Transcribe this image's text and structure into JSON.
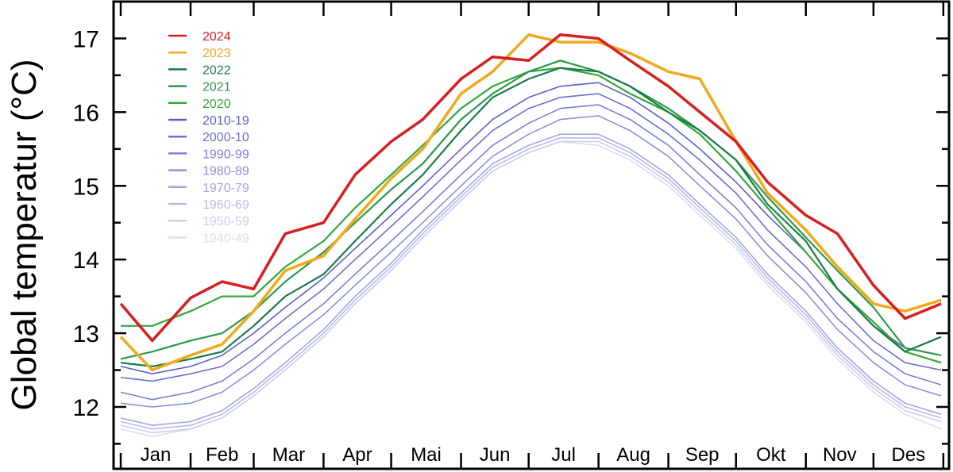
{
  "chart_data": {
    "type": "line",
    "title": "",
    "xlabel": "",
    "ylabel": "Global temperatur (°C)",
    "ylim": [
      11.16,
      17.5
    ],
    "yticks": [
      12,
      13,
      14,
      15,
      16,
      17
    ],
    "x_unit": "day of year",
    "xlim": [
      1,
      365
    ],
    "months": [
      "Jan",
      "Feb",
      "Mar",
      "Apr",
      "Mai",
      "Jun",
      "Jul",
      "Aug",
      "Sep",
      "Okt",
      "Nov",
      "Des"
    ],
    "x": [
      1,
      15,
      32,
      46,
      60,
      74,
      91,
      105,
      121,
      135,
      152,
      166,
      182,
      196,
      213,
      227,
      244,
      258,
      274,
      288,
      305,
      319,
      335,
      349,
      365
    ],
    "legend_position": "top-left",
    "grid": false,
    "series": [
      {
        "name": "2024",
        "color": "#d81e1e",
        "values": [
          13.4,
          12.9,
          13.48,
          13.7,
          13.6,
          14.35,
          14.5,
          15.15,
          15.6,
          15.9,
          16.45,
          16.75,
          16.7,
          17.05,
          17.0,
          16.7,
          16.35,
          16.0,
          15.6,
          15.05,
          14.6,
          14.35,
          13.65,
          13.2,
          13.4
        ]
      },
      {
        "name": "2023",
        "color": "#f2a81d",
        "values": [
          12.95,
          12.5,
          12.7,
          12.85,
          13.3,
          13.85,
          14.05,
          14.55,
          15.1,
          15.5,
          16.25,
          16.55,
          17.05,
          16.95,
          16.95,
          16.8,
          16.55,
          16.45,
          15.6,
          14.9,
          14.4,
          13.9,
          13.4,
          13.3,
          13.45
        ]
      },
      {
        "name": "2022",
        "color": "#1b7a4a",
        "values": [
          12.6,
          12.55,
          12.65,
          12.75,
          13.1,
          13.5,
          13.8,
          14.25,
          14.75,
          15.15,
          15.75,
          16.2,
          16.45,
          16.6,
          16.55,
          16.35,
          16.0,
          15.75,
          15.35,
          14.75,
          14.25,
          13.6,
          13.1,
          12.75,
          12.95
        ]
      },
      {
        "name": "2021",
        "color": "#2a9a48",
        "values": [
          12.65,
          12.75,
          12.9,
          13.0,
          13.3,
          13.7,
          14.1,
          14.5,
          14.95,
          15.3,
          15.9,
          16.25,
          16.55,
          16.7,
          16.55,
          16.35,
          16.05,
          15.75,
          15.35,
          14.85,
          14.3,
          13.85,
          13.35,
          12.8,
          12.7
        ]
      },
      {
        "name": "2020",
        "color": "#33a83a",
        "values": [
          13.1,
          13.1,
          13.3,
          13.5,
          13.5,
          13.9,
          14.25,
          14.7,
          15.15,
          15.55,
          16.05,
          16.35,
          16.55,
          16.6,
          16.5,
          16.25,
          16.0,
          15.7,
          15.2,
          14.7,
          14.1,
          13.6,
          13.15,
          12.75,
          12.6
        ]
      },
      {
        "name": "2010-19",
        "color": "#5a5fcf",
        "values": [
          12.55,
          12.45,
          12.55,
          12.7,
          13.0,
          13.35,
          13.75,
          14.15,
          14.6,
          15.0,
          15.5,
          15.9,
          16.2,
          16.35,
          16.4,
          16.2,
          15.85,
          15.5,
          15.05,
          14.6,
          14.1,
          13.6,
          13.1,
          12.8,
          12.7
        ]
      },
      {
        "name": "2000-10",
        "color": "#6a6fd2",
        "values": [
          12.4,
          12.35,
          12.45,
          12.55,
          12.85,
          13.2,
          13.6,
          14.0,
          14.45,
          14.85,
          15.35,
          15.75,
          16.05,
          16.2,
          16.25,
          16.05,
          15.7,
          15.35,
          14.9,
          14.4,
          13.9,
          13.4,
          12.9,
          12.6,
          12.5
        ]
      },
      {
        "name": "1990-99",
        "color": "#7a80d6",
        "values": [
          12.2,
          12.1,
          12.2,
          12.35,
          12.65,
          13.0,
          13.4,
          13.8,
          14.25,
          14.65,
          15.15,
          15.55,
          15.85,
          16.05,
          16.1,
          15.9,
          15.55,
          15.15,
          14.7,
          14.2,
          13.7,
          13.2,
          12.75,
          12.45,
          12.3
        ]
      },
      {
        "name": "1980-89",
        "color": "#8a90dc",
        "values": [
          12.05,
          12.0,
          12.05,
          12.2,
          12.5,
          12.85,
          13.25,
          13.65,
          14.1,
          14.5,
          15.0,
          15.4,
          15.7,
          15.9,
          15.95,
          15.75,
          15.4,
          15.0,
          14.55,
          14.05,
          13.55,
          13.05,
          12.6,
          12.3,
          12.15
        ]
      },
      {
        "name": "1970-79",
        "color": "#a0a6e4",
        "values": [
          11.85,
          11.75,
          11.8,
          11.95,
          12.25,
          12.6,
          13.05,
          13.5,
          13.95,
          14.4,
          14.9,
          15.3,
          15.55,
          15.7,
          15.7,
          15.5,
          15.15,
          14.75,
          14.3,
          13.8,
          13.3,
          12.8,
          12.35,
          12.05,
          11.9
        ]
      },
      {
        "name": "1960-69",
        "color": "#b6bbea",
        "values": [
          11.8,
          11.7,
          11.75,
          11.9,
          12.2,
          12.55,
          13.0,
          13.45,
          13.9,
          14.35,
          14.85,
          15.25,
          15.5,
          15.65,
          15.65,
          15.45,
          15.1,
          14.7,
          14.25,
          13.75,
          13.25,
          12.75,
          12.3,
          12.0,
          11.85
        ]
      },
      {
        "name": "1950-59",
        "color": "#cacdf0",
        "values": [
          11.75,
          11.65,
          11.7,
          11.85,
          12.15,
          12.5,
          12.95,
          13.4,
          13.85,
          14.3,
          14.8,
          15.2,
          15.45,
          15.6,
          15.6,
          15.4,
          15.05,
          14.65,
          14.2,
          13.7,
          13.2,
          12.7,
          12.25,
          11.95,
          11.8
        ]
      },
      {
        "name": "1940-49",
        "color": "#dcdef5",
        "values": [
          11.7,
          11.6,
          11.7,
          11.85,
          12.15,
          12.5,
          12.95,
          13.4,
          13.85,
          14.3,
          14.8,
          15.2,
          15.45,
          15.6,
          15.55,
          15.35,
          15.0,
          14.6,
          14.15,
          13.65,
          13.15,
          12.65,
          12.2,
          11.9,
          11.7
        ]
      }
    ]
  }
}
